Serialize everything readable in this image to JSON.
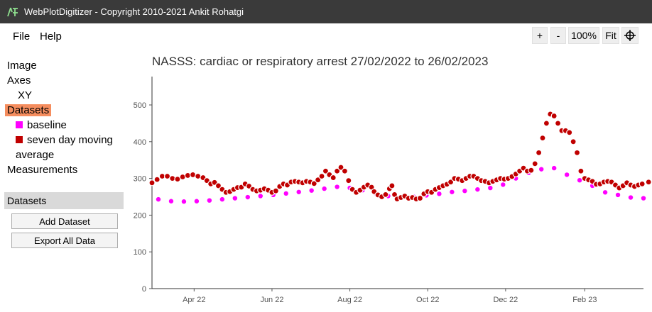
{
  "window": {
    "title": "WebPlotDigitizer - Copyright 2010-2021 Ankit Rohatgi"
  },
  "menu": {
    "file": "File",
    "help": "Help"
  },
  "zoom": {
    "plus": "+",
    "minus": "-",
    "level": "100%",
    "fit": "Fit"
  },
  "sidebar": {
    "image": "Image",
    "axes": "Axes",
    "xy": "XY",
    "datasets": "Datasets",
    "baseline": "baseline",
    "seven_day_line1": "seven day moving",
    "seven_day_line2": "average",
    "measurements": "Measurements",
    "baseline_color": "#ff00ff",
    "seven_day_color": "#c00000"
  },
  "panel": {
    "header": "Datasets",
    "add_dataset": "Add Dataset",
    "export_all": "Export All Data"
  },
  "chart_data": {
    "type": "scatter",
    "title": "NASSS: cardiac or respiratory arrest 27/02/2022 to 26/02/2023",
    "xlabel": "",
    "ylabel": "",
    "ylim": [
      0,
      500
    ],
    "yticks": [
      0,
      100,
      200,
      300,
      400,
      500
    ],
    "xticks": [
      "Apr 22",
      "Jun 22",
      "Aug 22",
      "Oct 22",
      "Dec 22",
      "Feb 23"
    ],
    "xtick_days": [
      33,
      94,
      155,
      216,
      277,
      339
    ],
    "xlim_days": [
      0,
      385
    ],
    "grid": false,
    "series": [
      {
        "name": "baseline",
        "color": "#ff00ff",
        "points": [
          [
            5,
            243
          ],
          [
            15,
            238
          ],
          [
            25,
            237
          ],
          [
            35,
            238
          ],
          [
            45,
            240
          ],
          [
            55,
            243
          ],
          [
            65,
            246
          ],
          [
            75,
            249
          ],
          [
            85,
            252
          ],
          [
            95,
            255
          ],
          [
            105,
            259
          ],
          [
            115,
            263
          ],
          [
            125,
            267
          ],
          [
            135,
            272
          ],
          [
            145,
            277
          ],
          [
            155,
            274
          ],
          [
            165,
            268
          ],
          [
            175,
            260
          ],
          [
            185,
            252
          ],
          [
            195,
            247
          ],
          [
            205,
            250
          ],
          [
            215,
            254
          ],
          [
            225,
            258
          ],
          [
            235,
            263
          ],
          [
            245,
            266
          ],
          [
            255,
            270
          ],
          [
            265,
            274
          ],
          [
            275,
            283
          ],
          [
            285,
            300
          ],
          [
            295,
            315
          ],
          [
            305,
            325
          ],
          [
            315,
            328
          ],
          [
            325,
            310
          ],
          [
            335,
            295
          ],
          [
            345,
            280
          ],
          [
            355,
            262
          ],
          [
            365,
            255
          ],
          [
            375,
            248
          ],
          [
            385,
            246
          ]
        ]
      },
      {
        "name": "seven day moving average",
        "color": "#c00000",
        "points": [
          [
            0,
            288
          ],
          [
            4,
            297
          ],
          [
            8,
            306
          ],
          [
            12,
            306
          ],
          [
            16,
            300
          ],
          [
            20,
            298
          ],
          [
            24,
            304
          ],
          [
            28,
            308
          ],
          [
            32,
            310
          ],
          [
            36,
            306
          ],
          [
            40,
            302
          ],
          [
            43,
            294
          ],
          [
            46,
            285
          ],
          [
            49,
            289
          ],
          [
            52,
            280
          ],
          [
            55,
            270
          ],
          [
            58,
            262
          ],
          [
            61,
            264
          ],
          [
            64,
            270
          ],
          [
            67,
            275
          ],
          [
            70,
            276
          ],
          [
            73,
            285
          ],
          [
            76,
            279
          ],
          [
            79,
            270
          ],
          [
            82,
            266
          ],
          [
            85,
            268
          ],
          [
            88,
            272
          ],
          [
            91,
            268
          ],
          [
            94,
            262
          ],
          [
            97,
            266
          ],
          [
            100,
            278
          ],
          [
            103,
            285
          ],
          [
            106,
            282
          ],
          [
            109,
            290
          ],
          [
            112,
            292
          ],
          [
            115,
            290
          ],
          [
            118,
            288
          ],
          [
            121,
            292
          ],
          [
            124,
            290
          ],
          [
            127,
            286
          ],
          [
            130,
            296
          ],
          [
            133,
            306
          ],
          [
            136,
            320
          ],
          [
            139,
            310
          ],
          [
            142,
            302
          ],
          [
            145,
            320
          ],
          [
            148,
            330
          ],
          [
            151,
            320
          ],
          [
            154,
            294
          ],
          [
            157,
            270
          ],
          [
            160,
            262
          ],
          [
            163,
            268
          ],
          [
            166,
            276
          ],
          [
            169,
            282
          ],
          [
            172,
            276
          ],
          [
            174,
            264
          ],
          [
            177,
            255
          ],
          [
            180,
            250
          ],
          [
            183,
            256
          ],
          [
            186,
            272
          ],
          [
            188,
            280
          ],
          [
            190,
            256
          ],
          [
            192,
            244
          ],
          [
            195,
            248
          ],
          [
            198,
            252
          ],
          [
            201,
            246
          ],
          [
            204,
            248
          ],
          [
            207,
            244
          ],
          [
            210,
            246
          ],
          [
            213,
            258
          ],
          [
            216,
            264
          ],
          [
            219,
            262
          ],
          [
            222,
            270
          ],
          [
            225,
            275
          ],
          [
            228,
            280
          ],
          [
            231,
            284
          ],
          [
            234,
            290
          ],
          [
            237,
            300
          ],
          [
            240,
            298
          ],
          [
            243,
            294
          ],
          [
            246,
            300
          ],
          [
            249,
            306
          ],
          [
            252,
            306
          ],
          [
            255,
            300
          ],
          [
            258,
            294
          ],
          [
            261,
            292
          ],
          [
            264,
            288
          ],
          [
            267,
            292
          ],
          [
            270,
            296
          ],
          [
            273,
            300
          ],
          [
            276,
            298
          ],
          [
            279,
            300
          ],
          [
            282,
            305
          ],
          [
            285,
            312
          ],
          [
            288,
            320
          ],
          [
            291,
            328
          ],
          [
            294,
            320
          ],
          [
            297,
            322
          ],
          [
            300,
            340
          ],
          [
            303,
            370
          ],
          [
            306,
            410
          ],
          [
            309,
            450
          ],
          [
            312,
            475
          ],
          [
            315,
            470
          ],
          [
            318,
            450
          ],
          [
            321,
            430
          ],
          [
            324,
            430
          ],
          [
            327,
            425
          ],
          [
            330,
            400
          ],
          [
            333,
            370
          ],
          [
            336,
            320
          ],
          [
            339,
            300
          ],
          [
            342,
            296
          ],
          [
            345,
            292
          ],
          [
            348,
            284
          ],
          [
            351,
            285
          ],
          [
            354,
            290
          ],
          [
            357,
            292
          ],
          [
            360,
            290
          ],
          [
            363,
            282
          ],
          [
            366,
            274
          ],
          [
            369,
            280
          ],
          [
            372,
            288
          ],
          [
            375,
            282
          ],
          [
            378,
            278
          ],
          [
            381,
            282
          ],
          [
            384,
            285
          ],
          [
            389,
            290
          ]
        ]
      }
    ]
  }
}
